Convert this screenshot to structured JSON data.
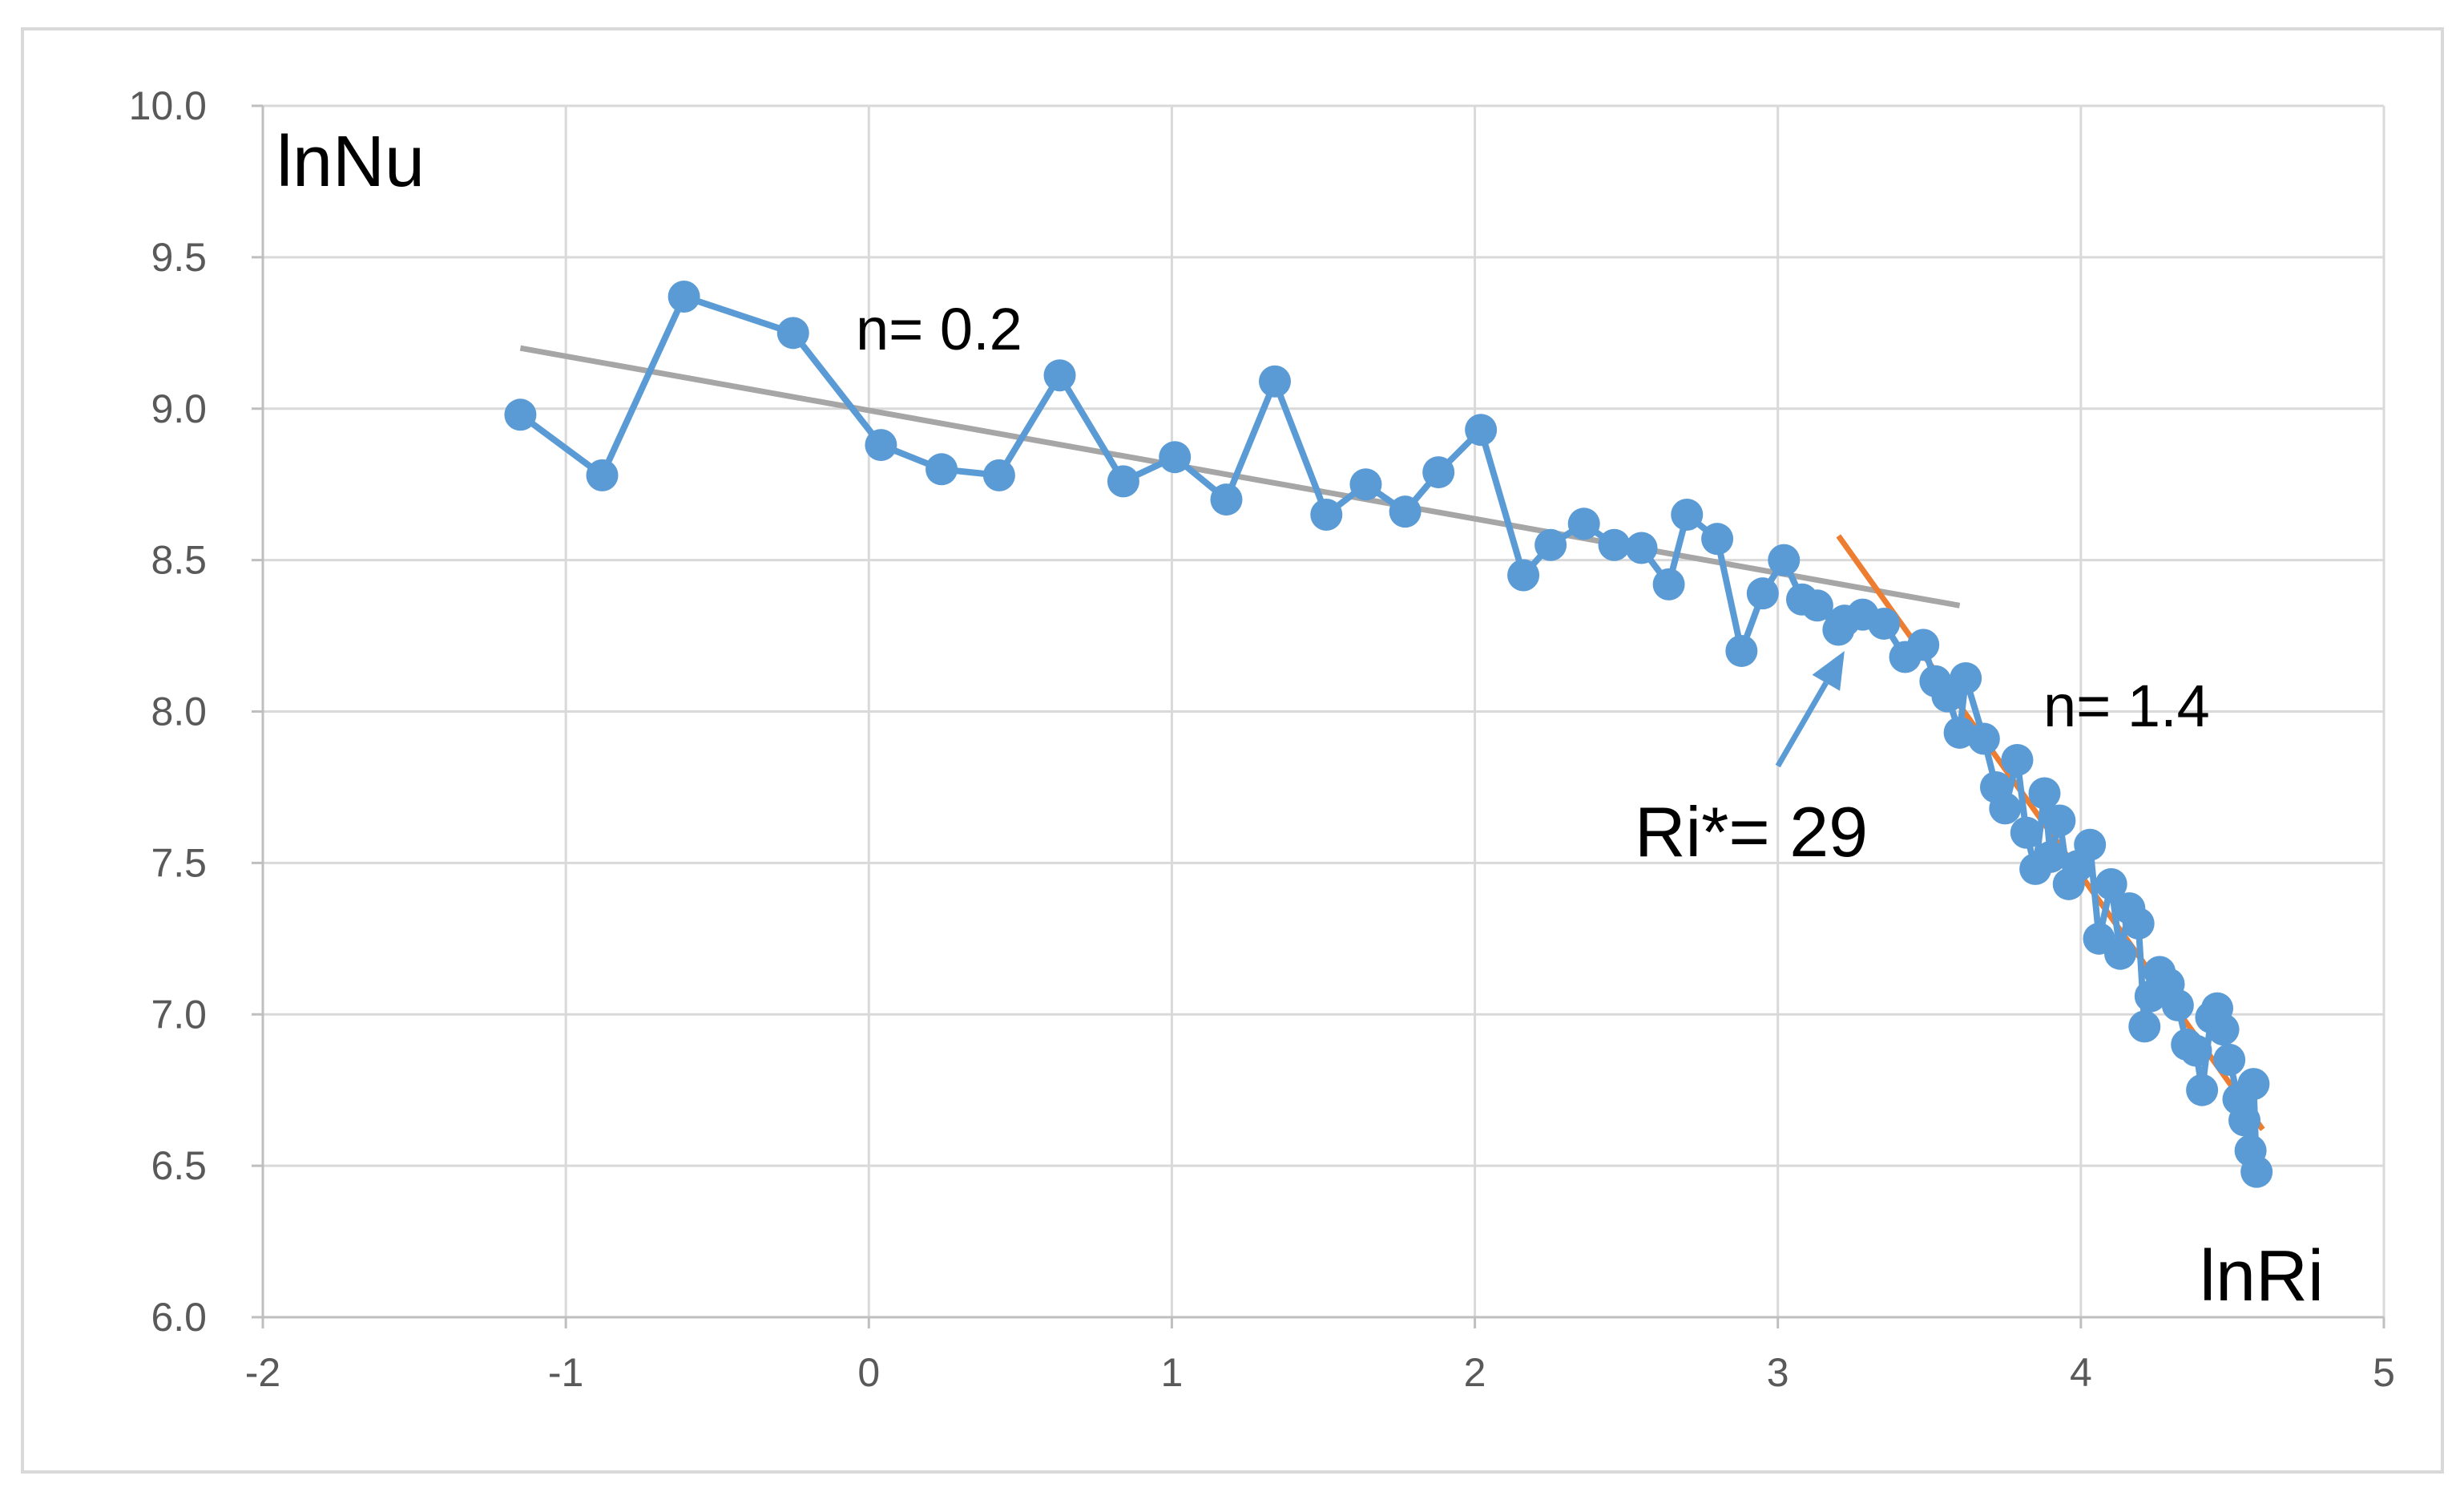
{
  "chart_data": {
    "type": "line",
    "title": "",
    "xlabel": "lnRi",
    "ylabel": "lnNu",
    "xlim": [
      -2,
      5
    ],
    "ylim": [
      6.0,
      10.0
    ],
    "x_ticks": [
      "-2",
      "-1",
      "0",
      "1",
      "2",
      "3",
      "4",
      "5"
    ],
    "y_ticks": [
      "10.0",
      "9.5",
      "9.0",
      "8.5",
      "8.0",
      "7.5",
      "7.0",
      "6.5",
      "6.0"
    ],
    "grid": true,
    "legend": "none",
    "colors": {
      "data": "#5B9BD5",
      "fit_low": "#A6A6A6",
      "fit_high": "#ED7D31",
      "grid": "#D9D9D9",
      "axis": "#BFBFBF"
    },
    "series": [
      {
        "x": [
          -1.15,
          -0.88,
          -0.61,
          -0.25,
          0.04,
          0.24,
          0.43,
          0.63,
          0.84,
          1.01,
          1.18,
          1.34,
          1.51,
          1.64,
          1.77,
          1.88,
          2.02,
          2.16,
          2.25,
          2.36,
          2.46,
          2.55,
          2.64,
          2.7,
          2.8,
          2.88,
          2.95,
          3.02,
          3.08,
          3.13,
          3.2,
          3.22,
          3.28,
          3.35,
          3.42,
          3.48,
          3.52,
          3.56,
          3.6,
          3.62,
          3.68,
          3.72,
          3.75,
          3.79,
          3.82,
          3.85,
          3.88,
          3.9,
          3.93,
          3.96,
          3.99,
          4.03,
          4.06,
          4.1,
          4.13,
          4.16,
          4.19,
          4.21,
          4.23,
          4.26,
          4.29,
          4.32,
          4.35,
          4.38,
          4.4,
          4.43,
          4.45,
          4.47,
          4.49,
          4.52,
          4.54,
          4.56,
          4.57,
          4.58
        ],
        "y": [
          8.98,
          8.78,
          9.37,
          9.25,
          8.88,
          8.8,
          8.78,
          9.11,
          8.76,
          8.84,
          8.7,
          9.09,
          8.65,
          8.75,
          8.66,
          8.79,
          8.93,
          8.45,
          8.55,
          8.62,
          8.55,
          8.54,
          8.42,
          8.65,
          8.57,
          8.2,
          8.39,
          8.5,
          8.37,
          8.35,
          8.27,
          8.3,
          8.32,
          8.29,
          8.18,
          8.22,
          8.1,
          8.05,
          7.93,
          8.11,
          7.91,
          7.75,
          7.68,
          7.84,
          7.6,
          7.48,
          7.73,
          7.52,
          7.64,
          7.43,
          7.49,
          7.56,
          7.25,
          7.43,
          7.2,
          7.35,
          7.3,
          6.96,
          7.06,
          7.14,
          7.1,
          7.03,
          6.9,
          6.88,
          6.75,
          6.99,
          7.02,
          6.95,
          6.85,
          6.72,
          6.65,
          6.55,
          6.77,
          6.48
        ]
      },
      {
        "x": [
          -1.15,
          3.6
        ],
        "y": [
          9.2,
          8.35
        ]
      },
      {
        "x": [
          3.2,
          4.6
        ],
        "y": [
          8.58,
          6.62
        ]
      }
    ],
    "annotations": [
      {
        "text": "n= 0.2",
        "x": -0.05,
        "y": 9.2
      },
      {
        "text": "n= 1.4",
        "x": 3.87,
        "y": 7.96
      },
      {
        "text": "Ri*= 29",
        "x": 2.5,
        "y": 7.52
      }
    ],
    "arrow": {
      "from": [
        3.0,
        7.82
      ],
      "to": [
        3.22,
        8.2
      ]
    }
  }
}
